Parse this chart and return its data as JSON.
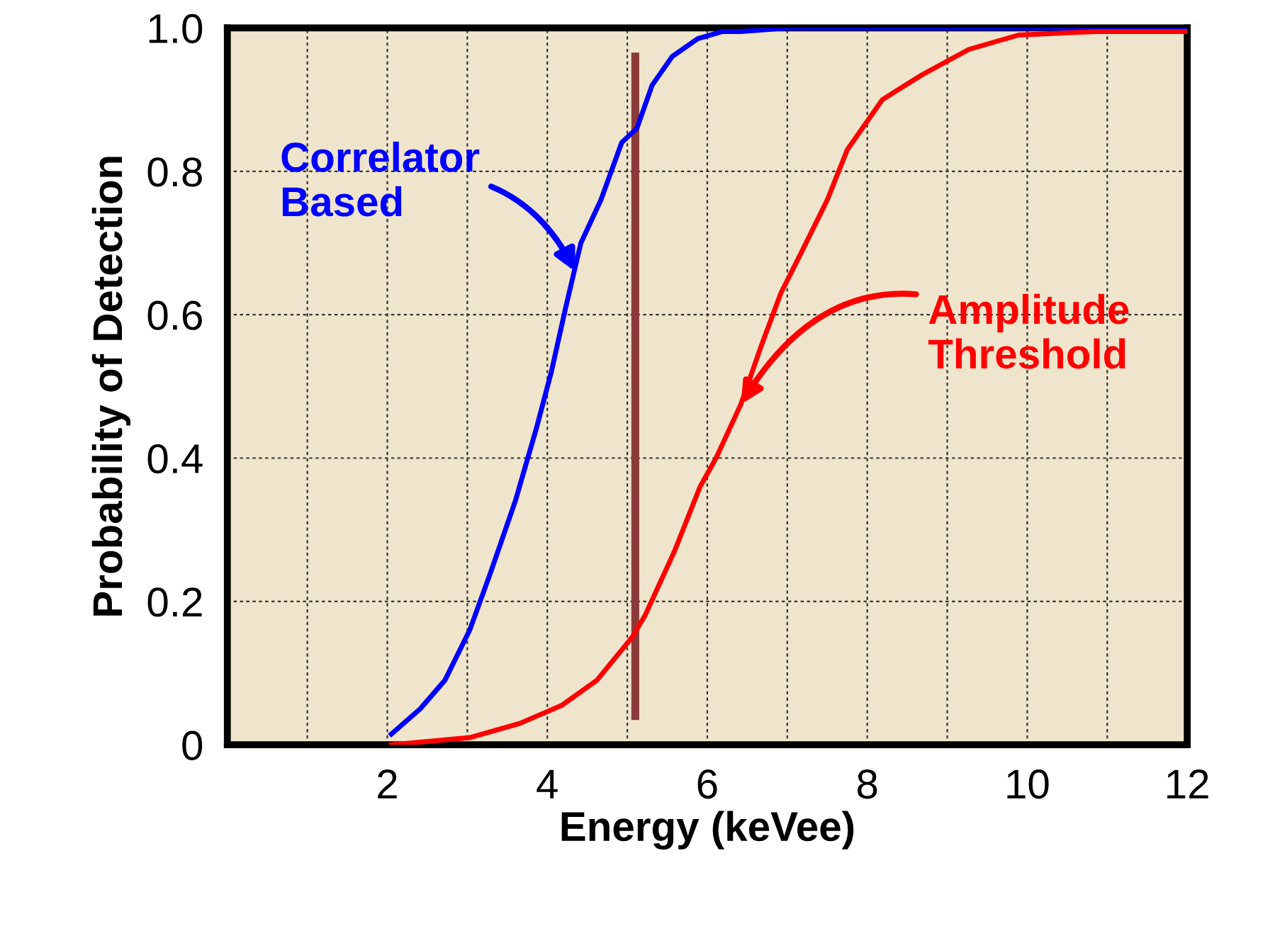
{
  "chart_data": {
    "type": "line",
    "xlabel": "Energy (keVee)",
    "ylabel": "Probability of Detection",
    "xlim": [
      0,
      12
    ],
    "ylim": [
      0,
      1.0
    ],
    "xticks": [
      {
        "value": 1,
        "label": null
      },
      2,
      {
        "value": 3,
        "label": null
      },
      4,
      {
        "value": 5,
        "label": null
      },
      6,
      {
        "value": 7,
        "label": null
      },
      8,
      {
        "value": 9,
        "label": null
      },
      10,
      {
        "value": 11,
        "label": null
      },
      12
    ],
    "yticks": [
      0,
      0.2,
      0.4,
      0.6,
      0.8,
      {
        "value": 1.0,
        "label": "1.0"
      }
    ],
    "grid": true,
    "line_style": "solid",
    "marker": "none",
    "series": [
      {
        "color": "#0000ff",
        "x": [
          2.05,
          2.41,
          2.72,
          3.03,
          3.29,
          3.6,
          3.86,
          4.05,
          4.23,
          4.42,
          4.67,
          4.93,
          5.12,
          5.31,
          5.56,
          5.88,
          6.19,
          6.42,
          7.0,
          8.0,
          10.0,
          12.0
        ],
        "values": [
          0.015,
          0.05,
          0.09,
          0.16,
          0.24,
          0.34,
          0.44,
          0.52,
          0.61,
          0.7,
          0.76,
          0.84,
          0.86,
          0.92,
          0.96,
          0.985,
          0.995,
          0.995,
          1.0,
          1.0,
          1.0,
          1.0
        ]
      },
      {
        "color": "#ff0000",
        "x": [
          2.05,
          3.03,
          3.66,
          4.18,
          4.62,
          5.06,
          5.22,
          5.59,
          5.91,
          6.11,
          6.42,
          6.67,
          6.92,
          7.19,
          7.5,
          7.75,
          8.19,
          8.69,
          9.27,
          9.89,
          10.85,
          11.98
        ],
        "values": [
          0.0,
          0.01,
          0.03,
          0.055,
          0.09,
          0.15,
          0.18,
          0.27,
          0.36,
          0.4,
          0.475,
          0.555,
          0.63,
          0.69,
          0.76,
          0.83,
          0.9,
          0.935,
          0.97,
          0.99,
          0.995,
          0.995
        ]
      }
    ],
    "ref_lines": [
      {
        "axis": "x",
        "value": 5.1,
        "label": null,
        "color": "#8b3a3a"
      }
    ],
    "annotations": [
      {
        "text": "Correlator\nBased",
        "x": 4.35,
        "y": 0.66
      },
      {
        "text": "Amplitude\nThreshold",
        "x": 6.42,
        "y": 0.475
      }
    ]
  }
}
